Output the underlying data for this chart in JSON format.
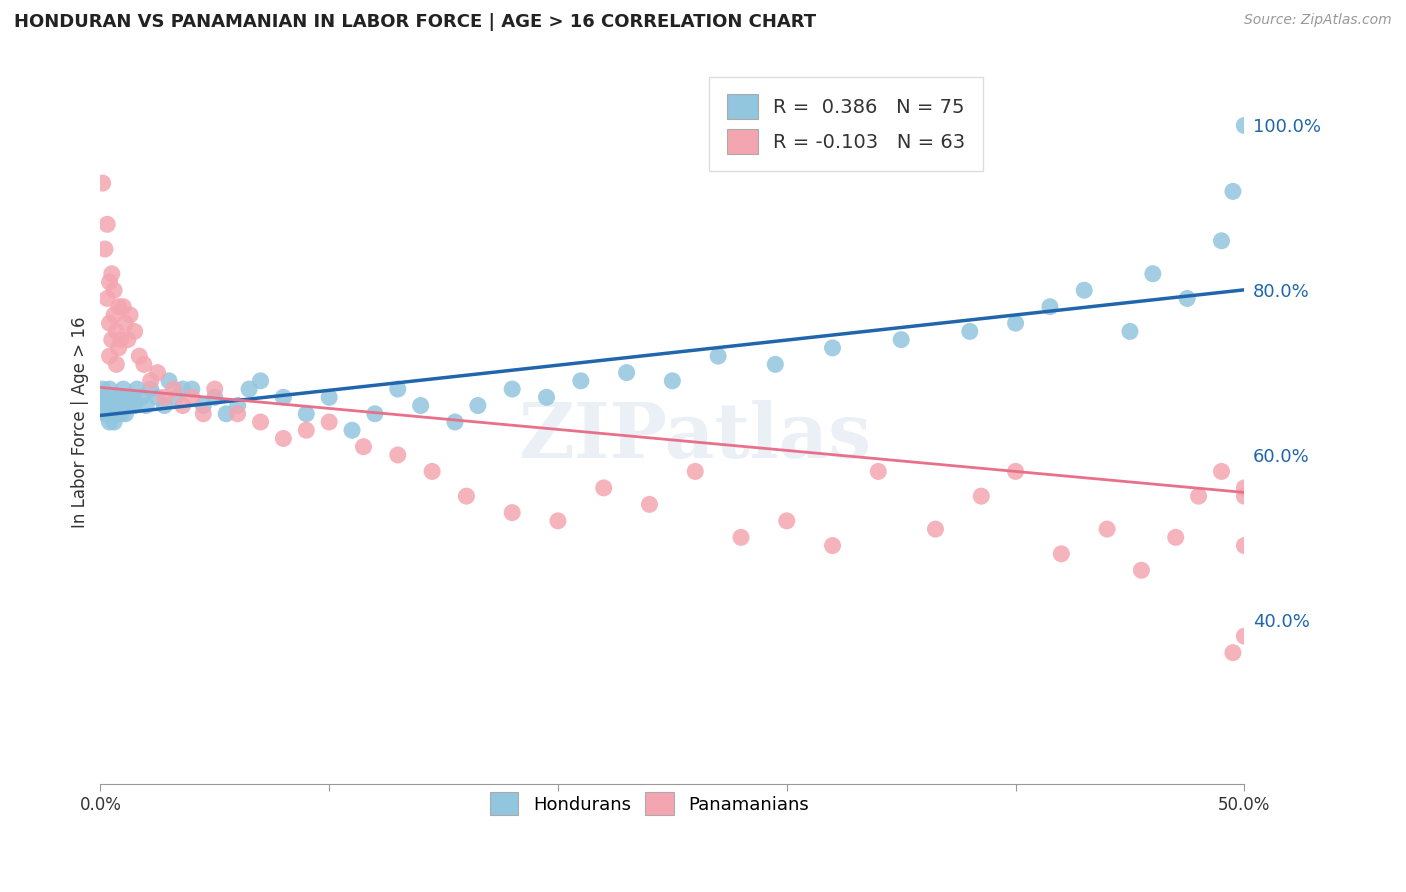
{
  "title": "HONDURAN VS PANAMANIAN IN LABOR FORCE | AGE > 16 CORRELATION CHART",
  "source": "Source: ZipAtlas.com",
  "ylabel_label": "In Labor Force | Age > 16",
  "x_min": 0.0,
  "x_max": 0.5,
  "y_min": 0.2,
  "y_max": 1.08,
  "x_ticks": [
    0.0,
    0.1,
    0.2,
    0.3,
    0.4,
    0.5
  ],
  "x_tick_labels": [
    "0.0%",
    "",
    "",
    "",
    "",
    "50.0%"
  ],
  "y_ticks": [
    0.4,
    0.6,
    0.8,
    1.0
  ],
  "y_tick_labels": [
    "40.0%",
    "60.0%",
    "80.0%",
    "100.0%"
  ],
  "blue_color": "#92c5de",
  "pink_color": "#f4a6b0",
  "blue_line_color": "#2166ac",
  "pink_line_color": "#e8708a",
  "background_color": "#ffffff",
  "grid_color": "#cccccc",
  "legend_blue_label": "R =  0.386   N = 75",
  "legend_pink_label": "R = -0.103   N = 63",
  "blue_intercept": 0.648,
  "blue_slope": 0.305,
  "pink_intercept": 0.682,
  "pink_slope": -0.255,
  "watermark": "ZIPatlas",
  "blue_points_x": [
    0.001,
    0.001,
    0.002,
    0.002,
    0.003,
    0.003,
    0.003,
    0.004,
    0.004,
    0.004,
    0.005,
    0.005,
    0.005,
    0.006,
    0.006,
    0.006,
    0.007,
    0.007,
    0.007,
    0.008,
    0.008,
    0.009,
    0.009,
    0.01,
    0.01,
    0.011,
    0.011,
    0.012,
    0.013,
    0.014,
    0.015,
    0.016,
    0.018,
    0.02,
    0.022,
    0.025,
    0.028,
    0.03,
    0.033,
    0.036,
    0.04,
    0.045,
    0.05,
    0.055,
    0.06,
    0.065,
    0.07,
    0.08,
    0.09,
    0.1,
    0.11,
    0.12,
    0.13,
    0.14,
    0.155,
    0.165,
    0.18,
    0.195,
    0.21,
    0.23,
    0.25,
    0.27,
    0.295,
    0.32,
    0.35,
    0.38,
    0.4,
    0.415,
    0.43,
    0.45,
    0.46,
    0.475,
    0.49,
    0.495,
    0.5
  ],
  "blue_points_y": [
    0.66,
    0.68,
    0.65,
    0.67,
    0.66,
    0.65,
    0.67,
    0.64,
    0.66,
    0.68,
    0.65,
    0.67,
    0.66,
    0.65,
    0.66,
    0.64,
    0.67,
    0.65,
    0.66,
    0.65,
    0.67,
    0.66,
    0.65,
    0.67,
    0.68,
    0.66,
    0.65,
    0.67,
    0.66,
    0.67,
    0.66,
    0.68,
    0.67,
    0.66,
    0.68,
    0.67,
    0.66,
    0.69,
    0.67,
    0.68,
    0.68,
    0.66,
    0.67,
    0.65,
    0.66,
    0.68,
    0.69,
    0.67,
    0.65,
    0.67,
    0.63,
    0.65,
    0.68,
    0.66,
    0.64,
    0.66,
    0.68,
    0.67,
    0.69,
    0.7,
    0.69,
    0.72,
    0.71,
    0.73,
    0.74,
    0.75,
    0.76,
    0.78,
    0.8,
    0.75,
    0.82,
    0.79,
    0.86,
    0.92,
    1.0
  ],
  "pink_points_x": [
    0.001,
    0.002,
    0.003,
    0.003,
    0.004,
    0.004,
    0.004,
    0.005,
    0.005,
    0.006,
    0.006,
    0.007,
    0.007,
    0.008,
    0.008,
    0.009,
    0.01,
    0.011,
    0.012,
    0.013,
    0.015,
    0.017,
    0.019,
    0.022,
    0.025,
    0.028,
    0.032,
    0.036,
    0.04,
    0.045,
    0.05,
    0.06,
    0.07,
    0.08,
    0.09,
    0.1,
    0.115,
    0.13,
    0.145,
    0.16,
    0.18,
    0.2,
    0.22,
    0.24,
    0.26,
    0.28,
    0.3,
    0.32,
    0.34,
    0.365,
    0.385,
    0.4,
    0.42,
    0.44,
    0.455,
    0.47,
    0.48,
    0.49,
    0.495,
    0.5,
    0.5,
    0.5,
    0.5
  ],
  "pink_points_y": [
    0.93,
    0.85,
    0.88,
    0.79,
    0.81,
    0.76,
    0.72,
    0.82,
    0.74,
    0.8,
    0.77,
    0.75,
    0.71,
    0.78,
    0.73,
    0.74,
    0.78,
    0.76,
    0.74,
    0.77,
    0.75,
    0.72,
    0.71,
    0.69,
    0.7,
    0.67,
    0.68,
    0.66,
    0.67,
    0.65,
    0.68,
    0.65,
    0.64,
    0.62,
    0.63,
    0.64,
    0.61,
    0.6,
    0.58,
    0.55,
    0.53,
    0.52,
    0.56,
    0.54,
    0.58,
    0.5,
    0.52,
    0.49,
    0.58,
    0.51,
    0.55,
    0.58,
    0.48,
    0.51,
    0.46,
    0.5,
    0.55,
    0.58,
    0.36,
    0.56,
    0.49,
    0.38,
    0.55
  ]
}
